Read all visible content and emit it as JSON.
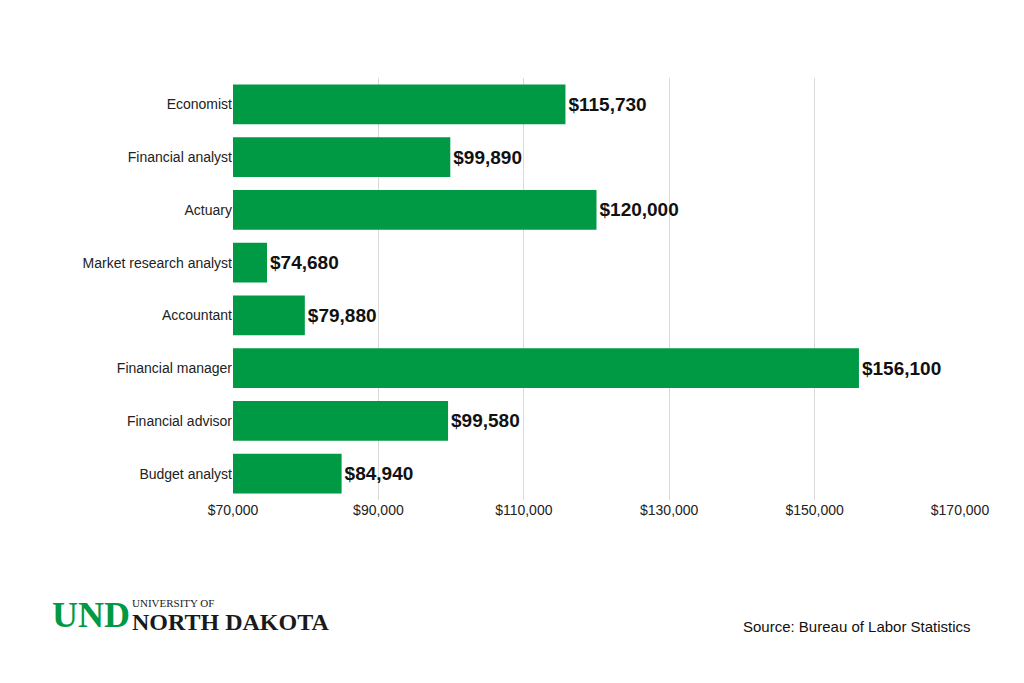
{
  "chart_data": {
    "type": "bar",
    "orientation": "horizontal",
    "categories": [
      "Economist",
      "Financial analyst",
      "Actuary",
      "Market research analyst",
      "Accountant",
      "Financial manager",
      "Financial advisor",
      "Budget analyst"
    ],
    "values": [
      115730,
      99890,
      120000,
      74680,
      79880,
      156100,
      99580,
      84940
    ],
    "value_labels": [
      "$115,730",
      "$99,890",
      "$120,000",
      "$74,680",
      "$79,880",
      "$156,100",
      "$99,580",
      "$84,940"
    ],
    "data_labels": true,
    "color": "#009a44",
    "xlim": [
      70000,
      170000
    ],
    "xticks": [
      {
        "value": 70000,
        "label": "$70,000"
      },
      {
        "value": 90000,
        "label": "$90,000"
      },
      {
        "value": 110000,
        "label": "$110,000"
      },
      {
        "value": 130000,
        "label": "$130,000"
      },
      {
        "value": 150000,
        "label": "$150,000"
      },
      {
        "value": 170000,
        "label": "$170,000"
      }
    ],
    "grid": true,
    "logo": [
      "UND",
      "UNIVERSITY OF",
      "NORTH DAKOTA"
    ],
    "source": "Source: Bureau of Labor Statistics"
  }
}
